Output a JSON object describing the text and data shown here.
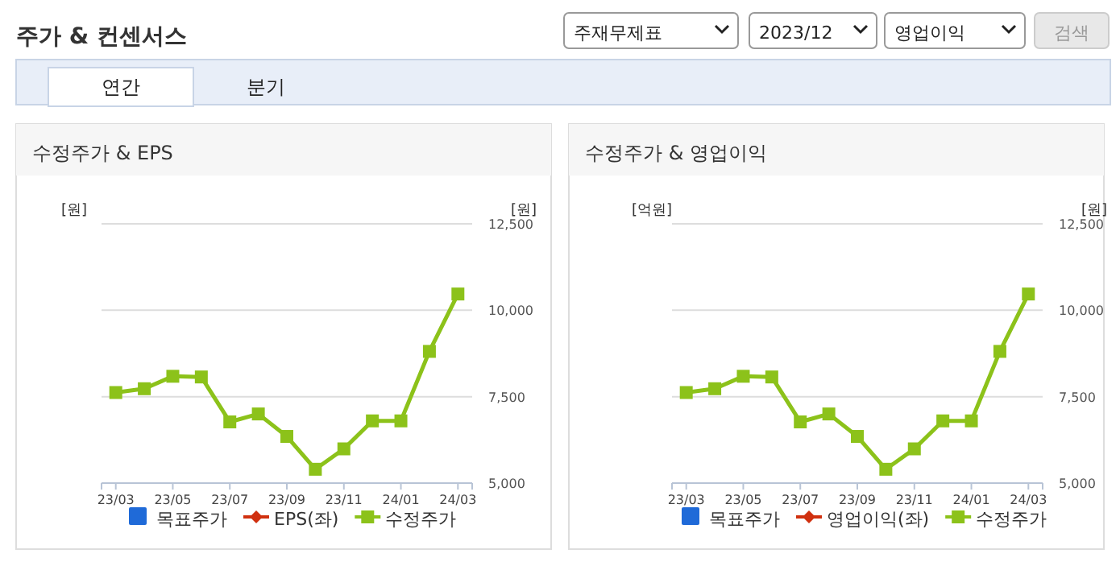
{
  "chart_data": [
    {
      "type": "other",
      "title": "주가 & 컨센서스",
      "annotations": [
        "주재무제표",
        "2023/12",
        "영업이익",
        "검색",
        "연간",
        "분기"
      ]
    },
    {
      "type": "line",
      "title": "수정주가 & EPS",
      "ylabel": "[원]",
      "y2label": "[원]",
      "categories": [
        "23/03",
        null,
        "23/05",
        null,
        "23/07",
        null,
        "23/09",
        null,
        "23/11",
        null,
        "24/01",
        null,
        "24/03"
      ],
      "y2lim": [
        5000,
        12500
      ],
      "y2ticks": [
        {
          "value": 5000,
          "label": "5,000"
        },
        {
          "value": 7500,
          "label": "7,500"
        },
        {
          "value": 10000,
          "label": "10,000"
        },
        {
          "value": 12500,
          "label": "12,500"
        }
      ],
      "grid": "y",
      "legend": "bottom",
      "series": [
        {
          "name": "목표주가",
          "type": "bar",
          "color": "#1f6ad8",
          "values": [
            null,
            null,
            null,
            null,
            null,
            null,
            null,
            null,
            null,
            null,
            null,
            null,
            null
          ]
        },
        {
          "name": "EPS(좌)",
          "color": "#d0300f",
          "marker": "diamond",
          "values": [
            null,
            null,
            null,
            null,
            null,
            null,
            null,
            null,
            null,
            null,
            null,
            null,
            null
          ]
        },
        {
          "name": "수정주가",
          "color": "#8cc21a",
          "marker": "square",
          "axis": "y2",
          "values": [
            7620,
            7730,
            8090,
            8070,
            6770,
            7000,
            6350,
            5400,
            5990,
            6800,
            6800,
            8810,
            10470
          ]
        }
      ]
    },
    {
      "type": "line",
      "title": "수정주가 & 영업이익",
      "ylabel": "[억원]",
      "y2label": "[원]",
      "categories": [
        "23/03",
        null,
        "23/05",
        null,
        "23/07",
        null,
        "23/09",
        null,
        "23/11",
        null,
        "24/01",
        null,
        "24/03"
      ],
      "y2lim": [
        5000,
        12500
      ],
      "y2ticks": [
        {
          "value": 5000,
          "label": "5,000"
        },
        {
          "value": 7500,
          "label": "7,500"
        },
        {
          "value": 10000,
          "label": "10,000"
        },
        {
          "value": 12500,
          "label": "12,500"
        }
      ],
      "grid": "y",
      "legend": "bottom",
      "series": [
        {
          "name": "목표주가",
          "type": "bar",
          "color": "#1f6ad8",
          "values": [
            null,
            null,
            null,
            null,
            null,
            null,
            null,
            null,
            null,
            null,
            null,
            null,
            null
          ]
        },
        {
          "name": "영업이익(좌)",
          "color": "#d0300f",
          "marker": "diamond",
          "values": [
            null,
            null,
            null,
            null,
            null,
            null,
            null,
            null,
            null,
            null,
            null,
            null,
            null
          ]
        },
        {
          "name": "수정주가",
          "color": "#8cc21a",
          "marker": "square",
          "axis": "y2",
          "values": [
            7620,
            7730,
            8090,
            8070,
            6770,
            7000,
            6350,
            5400,
            5990,
            6800,
            6800,
            8810,
            10470
          ]
        }
      ]
    }
  ]
}
